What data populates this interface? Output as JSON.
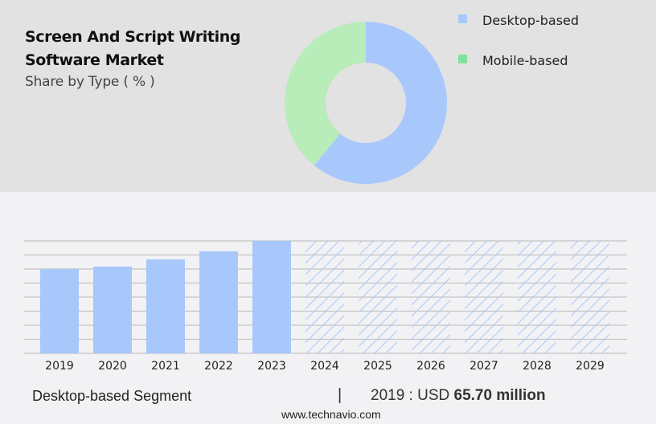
{
  "header": {
    "title_line1": "Screen And Script Writing",
    "title_line2": "Software Market",
    "subtitle": "Share by Type ( % )"
  },
  "legend": {
    "items": [
      {
        "label": "Desktop-based",
        "color": "#a8c8fc"
      },
      {
        "label": "Mobile-based",
        "color": "#7de29a"
      }
    ]
  },
  "footer": {
    "segment": "Desktop-based Segment",
    "divider": "|",
    "year_prefix": "2019 : USD ",
    "value": "65.70 million",
    "url": "www.technavio.com"
  },
  "chart_data": [
    {
      "type": "pie",
      "subtype": "donut",
      "title": "Screen And Script Writing Software Market - Share by Type ( % )",
      "categories": [
        "Desktop-based",
        "Mobile-based"
      ],
      "values": [
        61,
        39
      ],
      "colors": [
        "#a8c8fc",
        "#b8ecb9"
      ],
      "legend_position": "right"
    },
    {
      "type": "bar",
      "title": "Desktop-based Segment",
      "categories": [
        "2019",
        "2020",
        "2021",
        "2022",
        "2023",
        "2024",
        "2025",
        "2026",
        "2027",
        "2028",
        "2029"
      ],
      "values": [
        65.7,
        67.6,
        73.2,
        79.5,
        87.6,
        null,
        null,
        null,
        null,
        null,
        null
      ],
      "forecast": [
        false,
        false,
        false,
        false,
        false,
        true,
        true,
        true,
        true,
        true,
        true
      ],
      "unit": "USD million",
      "annotation": "2019 : USD 65.70 million",
      "xlabel": "",
      "ylabel": "",
      "grid": true,
      "bar_color": "#a8c8fc"
    }
  ]
}
